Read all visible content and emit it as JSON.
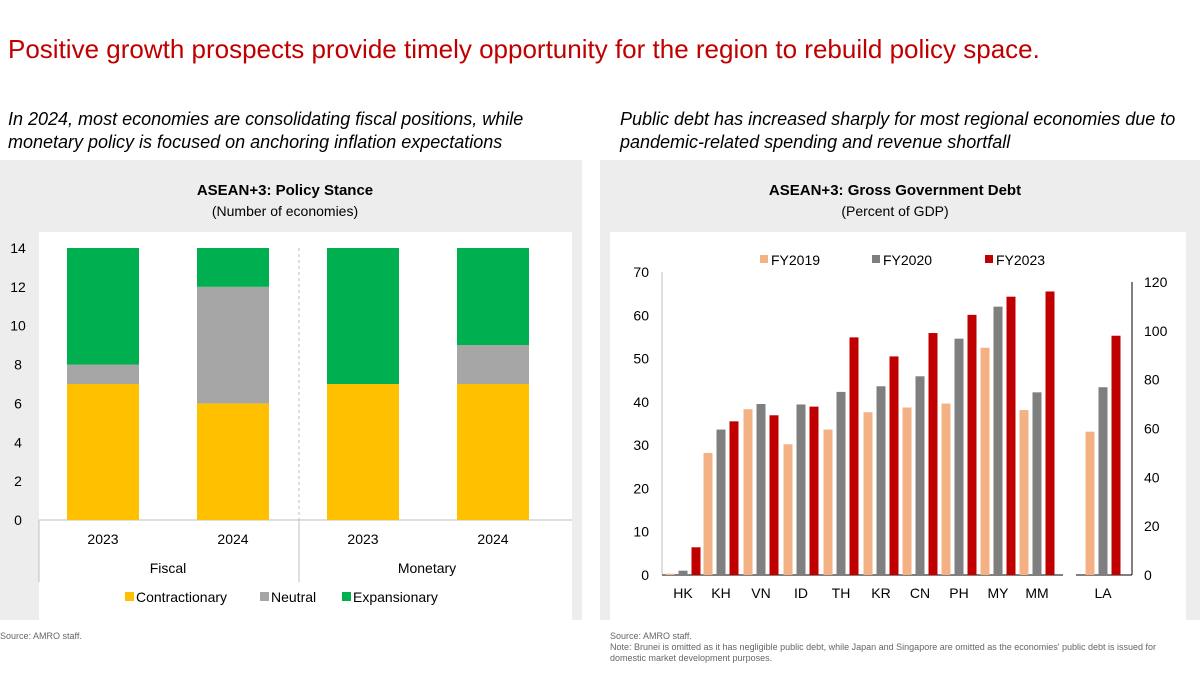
{
  "title": "Positive growth prospects provide timely opportunity for the region to rebuild policy space.",
  "left_subtitle": "In 2024, most economies are consolidating fiscal positions, while monetary policy is focused on anchoring inflation expectations",
  "right_subtitle": "Public debt has increased sharply for most regional economies due to pandemic-related spending and revenue shortfall",
  "left_source": "Source: AMRO staff.",
  "right_source": "Source: AMRO staff.",
  "right_note": "Note: Brunei is omitted as it has negligible public debt, while Japan and Singapore are omitted as the economies' public debt is issued for domestic market development purposes.",
  "chart_data": [
    {
      "type": "bar",
      "stacked": true,
      "title": "ASEAN+3: Policy Stance",
      "subtitle": "(Number of economies)",
      "groups": [
        "Fiscal",
        "Monetary"
      ],
      "categories": [
        "2023",
        "2024",
        "2023",
        "2024"
      ],
      "category_group": [
        0,
        0,
        1,
        1
      ],
      "series": [
        {
          "name": "Contractionary",
          "color": "#ffc000",
          "values": [
            7,
            6,
            7,
            7
          ]
        },
        {
          "name": "Neutral",
          "color": "#a6a6a6",
          "values": [
            1,
            6,
            0,
            2
          ]
        },
        {
          "name": "Expansionary",
          "color": "#00b050",
          "values": [
            6,
            2,
            7,
            5
          ]
        }
      ],
      "ylim": [
        0,
        14
      ],
      "yticks": [
        0,
        2,
        4,
        6,
        8,
        10,
        12,
        14
      ],
      "legend": "bottom",
      "group_divider": "dashed"
    },
    {
      "type": "bar",
      "title": "ASEAN+3: Gross Government Debt",
      "subtitle": "(Percent of GDP)",
      "categories": [
        "HK",
        "KH",
        "VN",
        "ID",
        "TH",
        "KR",
        "CN",
        "PH",
        "MY",
        "MM",
        "LA"
      ],
      "series": [
        {
          "name": "FY2019",
          "color": "#f4b183",
          "values": [
            0.3,
            28.2,
            38.3,
            30.2,
            33.6,
            37.6,
            38.7,
            39.6,
            52.5,
            38.1,
            58.7
          ]
        },
        {
          "name": "FY2020",
          "color": "#7f7f7f",
          "values": [
            1.0,
            33.6,
            39.5,
            39.4,
            42.3,
            43.6,
            45.9,
            54.6,
            62.0,
            42.2,
            76.9
          ]
        },
        {
          "name": "FY2023",
          "color": "#c00000",
          "values": [
            6.4,
            35.5,
            36.9,
            38.9,
            54.9,
            50.5,
            55.9,
            60.1,
            64.3,
            65.5,
            98.0
          ]
        }
      ],
      "right_axis_categories": [
        "LA"
      ],
      "ylim_left": [
        0,
        70
      ],
      "yticks_left": [
        0,
        10,
        20,
        30,
        40,
        50,
        60,
        70
      ],
      "ylim_right": [
        0,
        120
      ],
      "yticks_right": [
        0,
        20,
        40,
        60,
        80,
        100,
        120
      ],
      "legend": "top"
    }
  ]
}
